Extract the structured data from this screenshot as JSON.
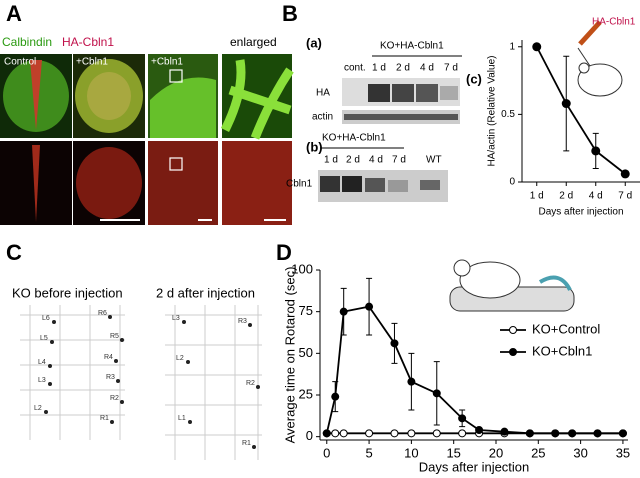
{
  "panel_labels": [
    "A",
    "B",
    "C",
    "D"
  ],
  "panel_a": {
    "stain_1": "Calbindin",
    "stain_2": "HA-Cbln1",
    "image_labels": [
      "Control",
      "+Cbln1",
      "+Cbln1",
      "enlarged"
    ]
  },
  "panel_b": {
    "blot_a": {
      "label": "(a)",
      "group": "KO+HA-Cbln1",
      "lanes": [
        "cont.",
        "1 d",
        "2 d",
        "4 d",
        "7 d"
      ],
      "rows": [
        "HA",
        "actin"
      ]
    },
    "blot_b": {
      "label": "(b)",
      "group": "KO+HA-Cbln1",
      "lanes": [
        "1 d",
        "2 d",
        "4 d",
        "7 d",
        "WT"
      ],
      "rows": [
        "Cbln1"
      ]
    }
  },
  "panel_c": {
    "tracks": [
      {
        "title": "KO before injection",
        "labels": [
          "L6",
          "R6",
          "L5",
          "R5",
          "L4",
          "R4",
          "L3",
          "R3",
          "R2",
          "L2",
          "R1"
        ]
      },
      {
        "title": "2 d after injection",
        "labels": [
          "L3",
          "R3",
          "L2",
          "R2",
          "L1",
          "R1"
        ]
      }
    ]
  },
  "chart_data": [
    {
      "type": "line",
      "panel_label": "(c)",
      "annotation": "HA-Cbln1",
      "categories": [
        "1 d",
        "2 d",
        "4 d",
        "7 d"
      ],
      "values": [
        1,
        0.58,
        0.23,
        0.06
      ],
      "errors": [
        0,
        0.35,
        0.13,
        0.02
      ],
      "color": "#000000",
      "ylim": [
        0,
        1.05
      ],
      "yticks": [
        0,
        0.5,
        1
      ],
      "ylabel": "HA/actin (Relative Value)",
      "xlabel": "Days after injection"
    },
    {
      "type": "line",
      "x": [
        0,
        1,
        2,
        5,
        8,
        10,
        13,
        16,
        18,
        21,
        24,
        27,
        29,
        32,
        35
      ],
      "series": [
        {
          "name": "KO+Control",
          "color": "#000000",
          "marker": "open",
          "values": [
            2,
            2,
            2,
            2,
            2,
            2,
            2,
            2,
            2,
            2,
            2,
            2,
            2,
            2,
            2
          ]
        },
        {
          "name": "KO+Cbln1",
          "color": "#000000",
          "marker": "filled",
          "values": [
            2,
            24,
            75,
            78,
            56,
            33,
            26,
            11,
            4,
            3,
            2,
            2,
            2,
            2,
            2
          ],
          "errors": [
            1,
            9,
            14,
            17,
            12,
            17,
            19,
            5,
            1,
            1,
            1,
            1,
            1,
            1,
            1
          ]
        }
      ],
      "xlim": [
        -0.8,
        35.6
      ],
      "xticks": [
        0,
        5,
        10,
        15,
        20,
        25,
        30,
        35
      ],
      "ylim": [
        -2,
        100
      ],
      "yticks": [
        0,
        25,
        50,
        75,
        100
      ],
      "ylabel": "Average time on Rotarod (sec)",
      "xlabel": "Days after injection"
    }
  ]
}
